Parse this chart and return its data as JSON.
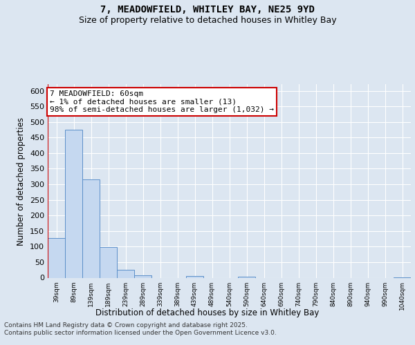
{
  "title_line1": "7, MEADOWFIELD, WHITLEY BAY, NE25 9YD",
  "title_line2": "Size of property relative to detached houses in Whitley Bay",
  "xlabel": "Distribution of detached houses by size in Whitley Bay",
  "ylabel": "Number of detached properties",
  "footnote": "Contains HM Land Registry data © Crown copyright and database right 2025.\nContains public sector information licensed under the Open Government Licence v3.0.",
  "annotation_text": "7 MEADOWFIELD: 60sqm\n← 1% of detached houses are smaller (13)\n98% of semi-detached houses are larger (1,032) →",
  "bar_color": "#c5d8f0",
  "bar_edge_color": "#5b8fc9",
  "annotation_box_color": "#cc0000",
  "annotation_fill": "#ffffff",
  "bg_color": "#dce6f1",
  "plot_bg_color": "#dce6f1",
  "grid_color": "#ffffff",
  "categories": [
    "39sqm",
    "89sqm",
    "139sqm",
    "189sqm",
    "239sqm",
    "289sqm",
    "339sqm",
    "389sqm",
    "439sqm",
    "489sqm",
    "540sqm",
    "590sqm",
    "640sqm",
    "690sqm",
    "740sqm",
    "790sqm",
    "840sqm",
    "890sqm",
    "940sqm",
    "990sqm",
    "1040sqm"
  ],
  "values": [
    128,
    476,
    315,
    98,
    25,
    8,
    0,
    0,
    5,
    0,
    0,
    3,
    0,
    0,
    0,
    0,
    0,
    0,
    0,
    0,
    2
  ],
  "ylim": [
    0,
    620
  ],
  "yticks": [
    0,
    50,
    100,
    150,
    200,
    250,
    300,
    350,
    400,
    450,
    500,
    550,
    600
  ],
  "title_fontsize": 10,
  "subtitle_fontsize": 9,
  "axis_label_fontsize": 8.5,
  "tick_fontsize": 8,
  "annotation_fontsize": 8,
  "footnote_fontsize": 6.5
}
